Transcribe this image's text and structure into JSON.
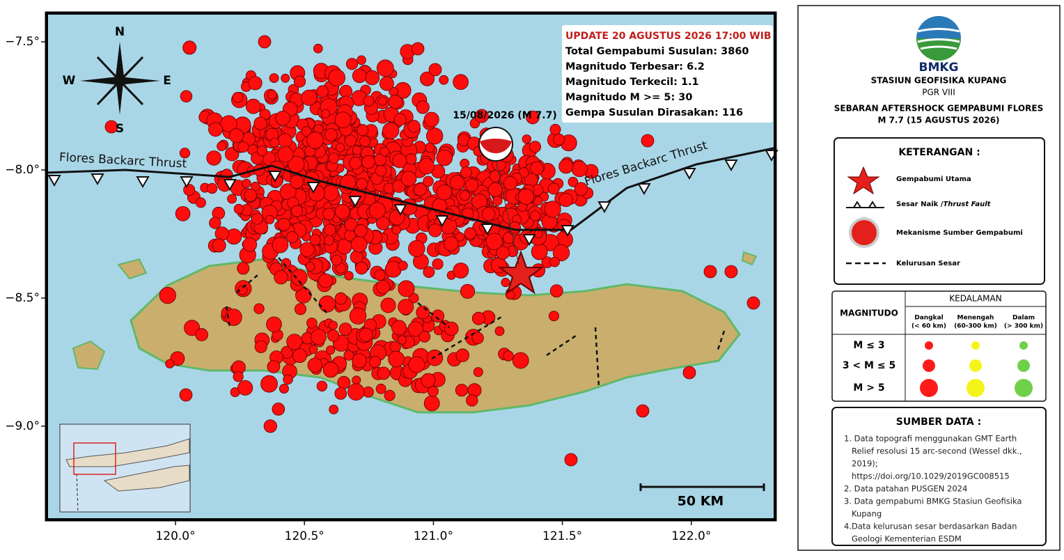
{
  "map": {
    "update": {
      "heading": "UPDATE 20 AGUSTUS 2026 17:00 WIB",
      "lines": [
        "Total Gempabumi Susulan: 3860",
        "Magnitudo Terbesar: 6.2",
        "Magnitudo Terkecil: 1.1",
        "Magnitudo M >= 5: 30",
        "Gempa Susulan Dirasakan: 116"
      ]
    },
    "mainshock_label": "15/08/2026 (M 7.7)",
    "fault_labels": [
      "Flores Backarc Thrust",
      "Flores Backarc Thrust"
    ],
    "compass": {
      "n": "N",
      "e": "E",
      "s": "S",
      "w": "W"
    },
    "scale_label": "50 KM",
    "xlim": [
      119.495,
      122.33
    ],
    "ylim": [
      -9.37,
      -7.383
    ],
    "xticks": [
      {
        "value": 120.0,
        "label": "120.0°"
      },
      {
        "value": 120.5,
        "label": "120.5°"
      },
      {
        "value": 121.0,
        "label": "121.0°"
      },
      {
        "value": 121.5,
        "label": "121.5°"
      },
      {
        "value": 122.0,
        "label": "122.0°"
      }
    ],
    "yticks": [
      {
        "value": -7.5,
        "label": "−7.5°"
      },
      {
        "value": -8.0,
        "label": "−8.0°"
      },
      {
        "value": -8.5,
        "label": "−8.5°"
      },
      {
        "value": -9.0,
        "label": "−9.0°"
      }
    ]
  },
  "panel": {
    "agency": "BMKG",
    "station": "STASIUN GEOFISIKA KUPANG",
    "unit": "PGR VIII",
    "title": [
      "SEBARAN AFTERSHOCK GEMPABUMI FLORES",
      "M 7.7 (15 AGUSTUS 2026)"
    ],
    "legend": {
      "title": "KETERANGAN :",
      "main": "Gempabumi  Utama",
      "thrust": "Sesar Naik /",
      "thrust_en": "Thrust Fault",
      "mechanism": "Mekanisme Sumber Gempabumi",
      "lineament": "Kelurusan Sesar"
    },
    "table": {
      "magnitude": "MAGNITUDO",
      "depth": "KEDALAMAN",
      "columns": [
        [
          "Dangkal",
          "(< 60 km)"
        ],
        [
          "Menengah",
          "(60-300 km)"
        ],
        [
          "Dalam",
          "(> 300 km)"
        ]
      ],
      "rows": [
        "M  ≤  3",
        "3 < M ≤ 5",
        "M  >  5"
      ]
    },
    "sources": {
      "title": "SUMBER DATA :",
      "items": [
        [
          "1. Data topografi menggunakan GMT Earth",
          "Relief resolusi 15 arc-second (Wessel dkk.,",
          "2019);",
          "https://doi.org/10.1029/2019GC008515"
        ],
        [
          "2. Data patahan PUSGEN 2024"
        ],
        [
          "3. Data gempabumi BMKG Stasiun Geofisika",
          "Kupang"
        ],
        [
          "4.Data kelurusan sesar berdasarkan Badan",
          "Geologi Kementerian ESDM"
        ]
      ]
    }
  }
}
